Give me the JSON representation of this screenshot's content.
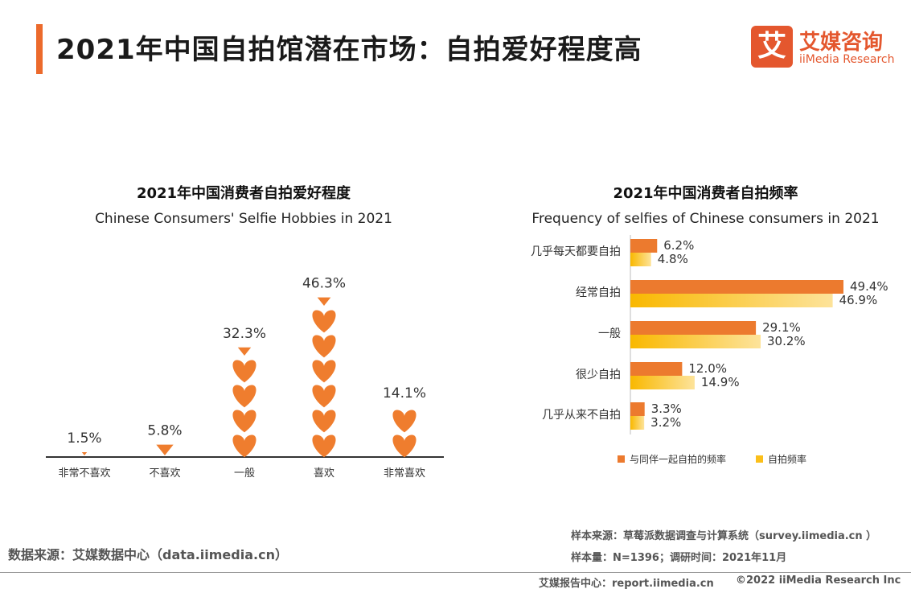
{
  "header": {
    "title": "2021年中国自拍馆潜在市场：自拍爱好程度高",
    "logo_mark": "艾",
    "logo_cn": "艾媒咨询",
    "logo_en": "iiMedia Research"
  },
  "colors": {
    "accent": "#ec6a2c",
    "heart": "#ef7d2e",
    "yellow": "#fbbf1a",
    "orange_bar": "#ec7a2e"
  },
  "chart_data": [
    {
      "type": "bar",
      "style": "pictograph-hearts",
      "title": "2021年中国消费者自拍爱好程度",
      "subtitle": "Chinese Consumers' Selfie Hobbies in 2021",
      "categories": [
        "非常不喜欢",
        "不喜欢",
        "一般",
        "喜欢",
        "非常喜欢"
      ],
      "values": [
        1.5,
        5.8,
        32.3,
        46.3,
        14.1
      ],
      "value_labels": [
        "1.5%",
        "5.8%",
        "32.3%",
        "46.3%",
        "14.1%"
      ],
      "unit": "%"
    },
    {
      "type": "bar",
      "orientation": "horizontal",
      "title": "2021年中国消费者自拍频率",
      "subtitle": "Frequency of selfies of Chinese consumers in 2021",
      "categories": [
        "几乎每天都要自拍",
        "经常自拍",
        "一般",
        "很少自拍",
        "几乎从来不自拍"
      ],
      "series": [
        {
          "name": "与同伴一起自拍的频率",
          "color": "#ec7a2e",
          "values": [
            6.2,
            49.4,
            29.1,
            12.0,
            3.3
          ],
          "labels": [
            "6.2%",
            "49.4%",
            "29.1%",
            "12.0%",
            "3.3%"
          ]
        },
        {
          "name": "自拍频率",
          "color": "#fbbf1a",
          "values": [
            4.8,
            46.9,
            30.2,
            14.9,
            3.2
          ],
          "labels": [
            "4.8%",
            "46.9%",
            "30.2%",
            "14.9%",
            "3.2%"
          ]
        }
      ],
      "legend": "bottom",
      "unit": "%"
    }
  ],
  "footer": {
    "source_left": "数据来源：艾媒数据中心（data.iimedia.cn）",
    "source_right": "样本来源：草莓派数据调查与计算系统（survey.iimedia.cn ）",
    "sample": "样本量：N=1396；调研时间：2021年11月",
    "report": "艾媒报告中心：report.iimedia.cn",
    "copyright": "©2022  iiMedia Research  Inc"
  }
}
